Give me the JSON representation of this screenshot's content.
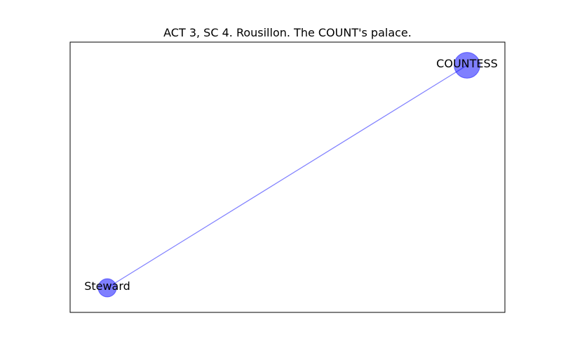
{
  "title": "ACT 3, SC 4. Rousillon. The COUNT's palace.",
  "colors": {
    "node": "#0000ff",
    "edge": "#0000ff",
    "frame": "#000000",
    "background": "#ffffff"
  },
  "graph": {
    "nodes": [
      {
        "id": "COUNTESS",
        "label": "COUNTESS",
        "weight": 2
      },
      {
        "id": "Steward",
        "label": "Steward",
        "weight": 1
      }
    ],
    "edges": [
      {
        "source": "COUNTESS",
        "target": "Steward"
      }
    ]
  }
}
